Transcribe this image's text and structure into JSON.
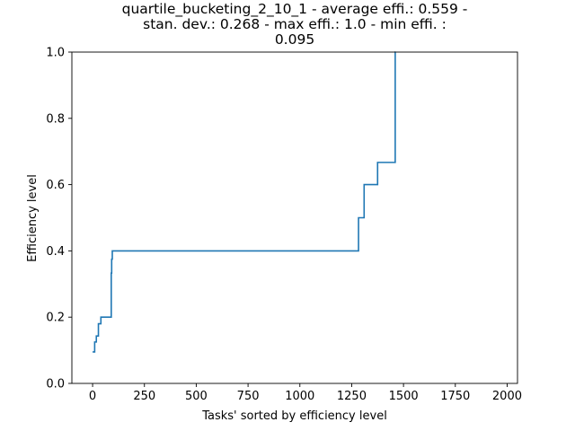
{
  "chart_data": {
    "type": "line",
    "title_lines": [
      "quartile_bucketing_2_10_1 - average effi.: 0.559 -",
      "stan. dev.: 0.268 - max effi.: 1.0 - min effi. :",
      "0.095"
    ],
    "xlabel": "Tasks' sorted by efficiency level",
    "ylabel": "Efficiency level",
    "xlim": [
      -100,
      2050
    ],
    "ylim": [
      0,
      1.0
    ],
    "x_ticks": [
      0,
      250,
      500,
      750,
      1000,
      1250,
      1500,
      1750,
      2000
    ],
    "x_tick_labels": [
      "0",
      "250",
      "500",
      "750",
      "1000",
      "1250",
      "1500",
      "1750",
      "2000"
    ],
    "y_ticks": [
      0.0,
      0.2,
      0.4,
      0.6,
      0.8,
      1.0
    ],
    "y_tick_labels": [
      "0.0",
      "0.2",
      "0.4",
      "0.6",
      "0.8",
      "1.0"
    ],
    "grid": false,
    "line_color": "#1f77b4",
    "series": [
      {
        "step": "post",
        "x": [
          0,
          10,
          18,
          28,
          40,
          90,
          92,
          95,
          1283,
          1290,
          1310,
          1375,
          1460,
          1462
        ],
        "y": [
          0.095,
          0.125,
          0.143,
          0.18,
          0.2,
          0.333,
          0.375,
          0.4,
          0.5,
          0.5,
          0.6,
          0.667,
          1.0,
          1.0
        ]
      }
    ]
  }
}
